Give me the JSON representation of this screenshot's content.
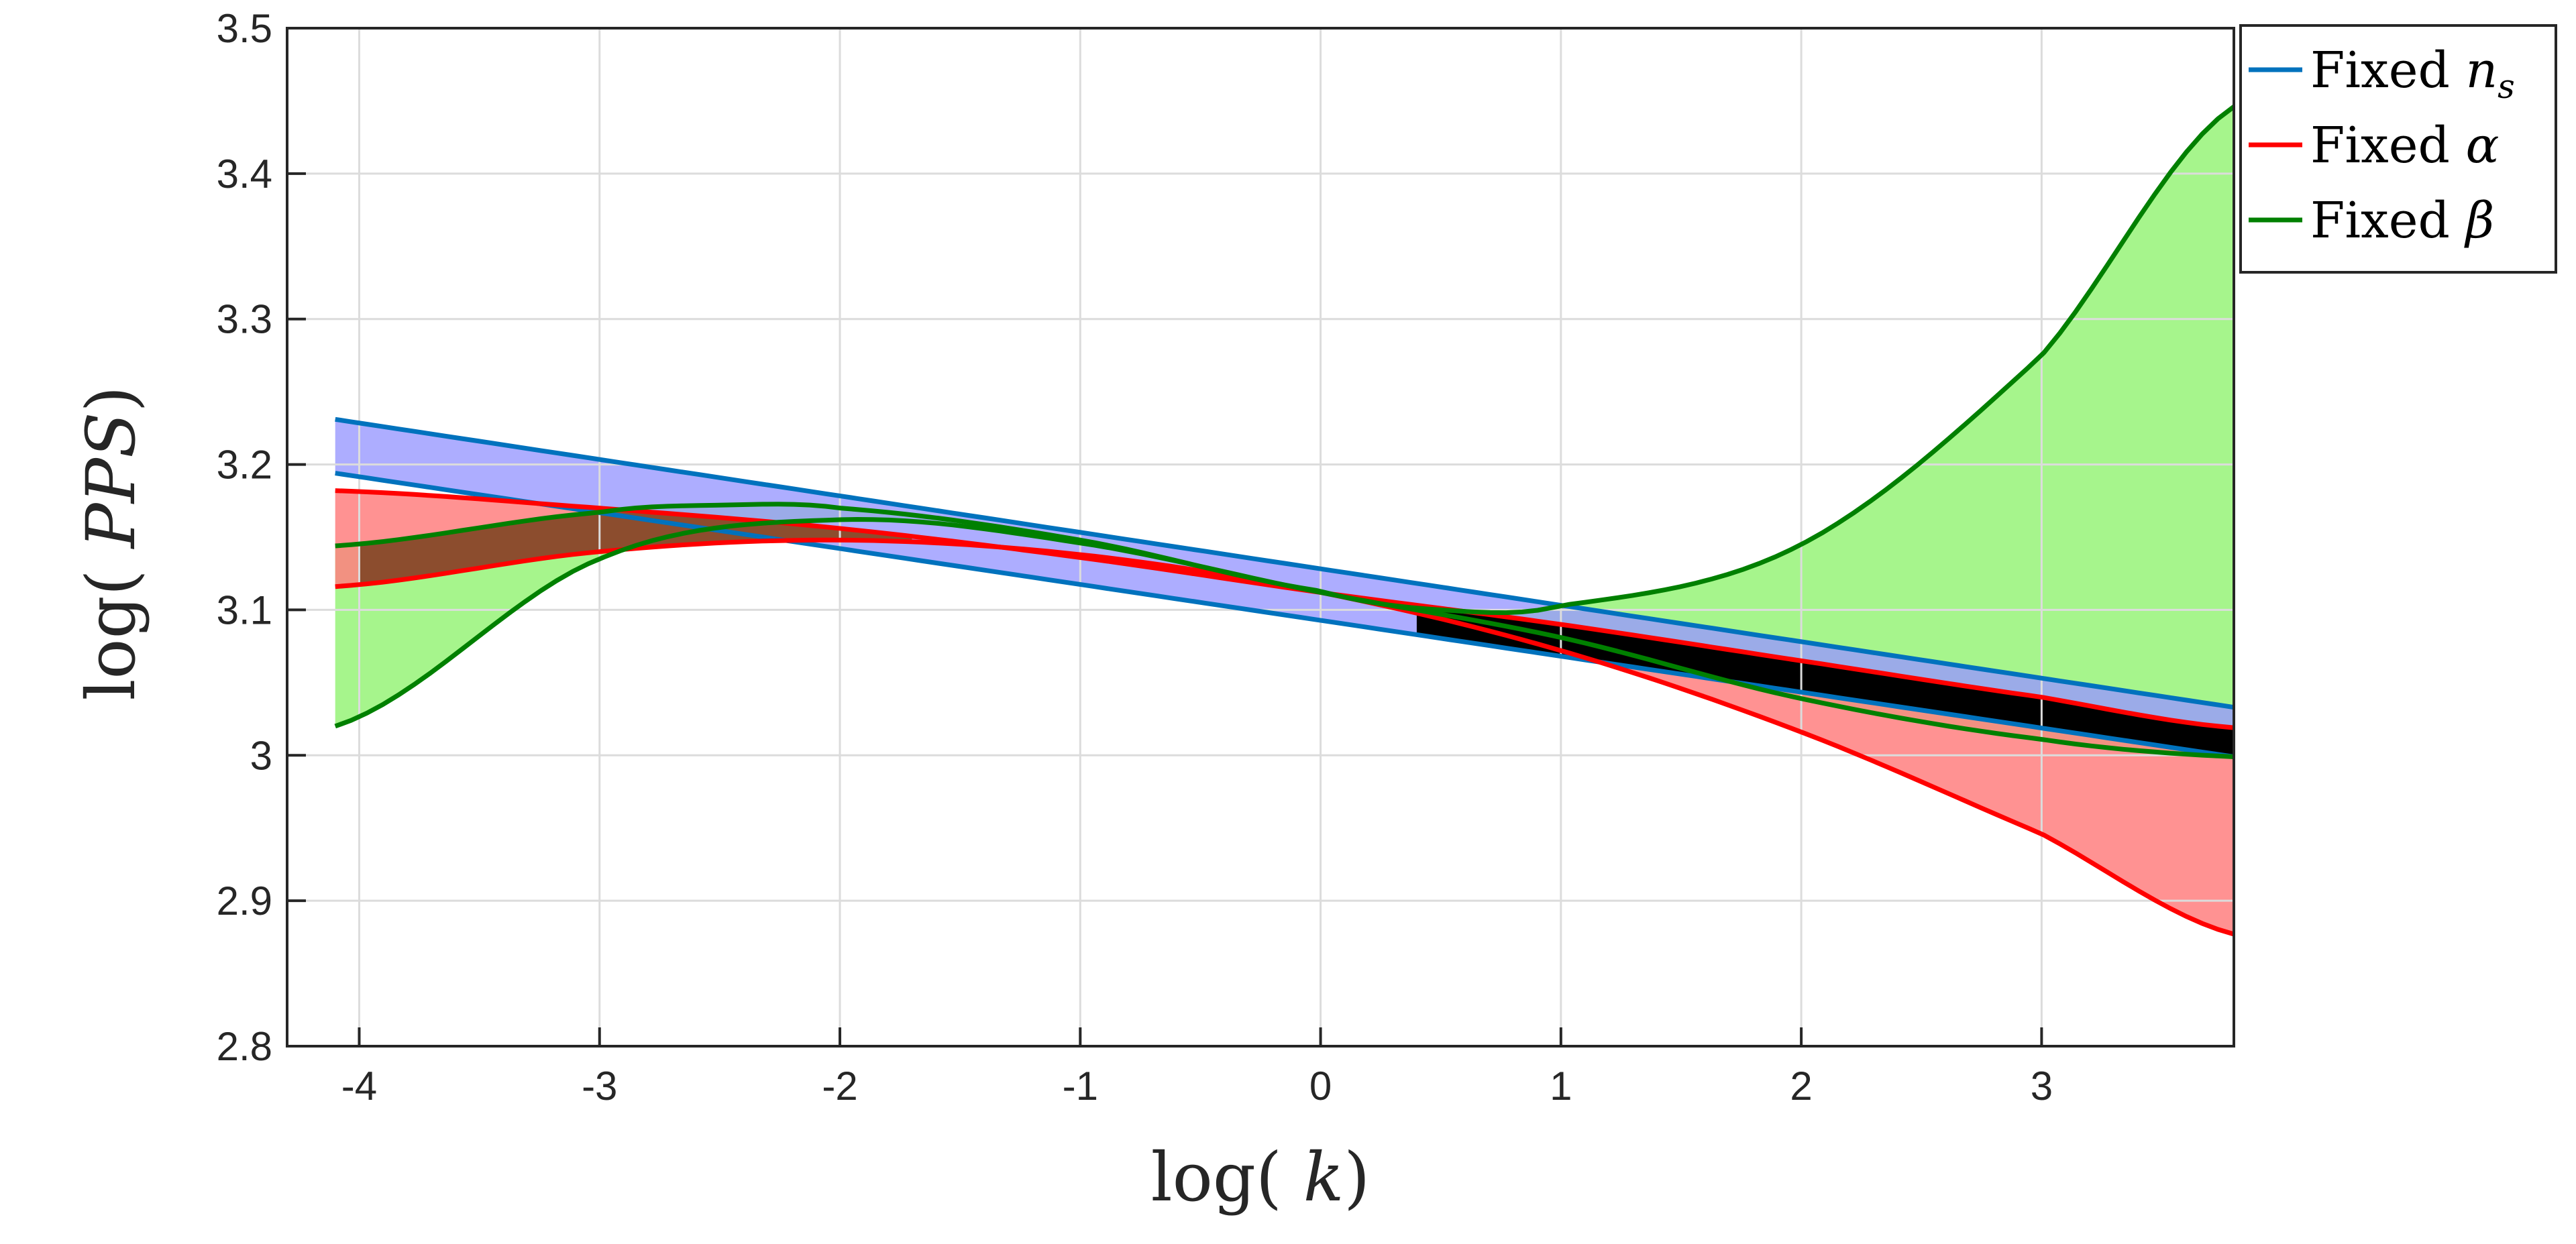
{
  "chart_data": {
    "type": "line",
    "xlabel": "log(k)",
    "ylabel": "log(PPS)",
    "xlim": [
      -4.3,
      3.8
    ],
    "ylim": [
      2.8,
      3.5
    ],
    "xticks": [
      -4,
      -3,
      -2,
      -1,
      0,
      1,
      2,
      3
    ],
    "yticks": [
      2.8,
      2.9,
      3.0,
      3.1,
      3.2,
      3.3,
      3.4,
      3.5
    ],
    "xtick_labels": [
      "-4",
      "-3",
      "-2",
      "-1",
      "0",
      "1",
      "2",
      "3"
    ],
    "ytick_labels": [
      "2.8",
      "2.9",
      "3",
      "3.1",
      "3.2",
      "3.3",
      "3.4",
      "3.5"
    ],
    "grid": true,
    "legend_position": "outside top-right",
    "legend": [
      {
        "label_prefix": "Fixed",
        "label_math": "n",
        "label_sub": "s",
        "color": "#0072BD"
      },
      {
        "label_prefix": "Fixed",
        "label_math": "α",
        "label_sub": "",
        "color": "#FF0000"
      },
      {
        "label_prefix": "Fixed",
        "label_math": "β",
        "label_sub": "",
        "color": "#008000"
      }
    ],
    "series": [
      {
        "group": "ns",
        "color": "#0072BD",
        "upper": {
          "x": [
            -4.1,
            3.8
          ],
          "y": [
            3.231,
            3.033
          ]
        },
        "lower": {
          "x": [
            -4.1,
            3.8
          ],
          "y": [
            3.194,
            2.999
          ]
        }
      },
      {
        "group": "alpha",
        "color": "#FF0000",
        "upper": {
          "x": [
            -4.1,
            -3,
            -2,
            -1,
            0,
            1,
            2,
            3,
            3.8
          ],
          "y": [
            3.182,
            3.17,
            3.156,
            3.136,
            3.112,
            3.09,
            3.065,
            3.04,
            3.019
          ]
        },
        "lower": {
          "x": [
            -4.1,
            -3,
            -2,
            -1,
            0,
            1,
            2,
            3,
            3.8
          ],
          "y": [
            3.116,
            3.14,
            3.148,
            3.138,
            3.112,
            3.072,
            3.016,
            2.946,
            2.877
          ]
        }
      },
      {
        "group": "beta",
        "color": "#008000",
        "upper": {
          "x": [
            -4.1,
            -3,
            -2.5,
            -2,
            -1,
            0,
            0.5,
            1,
            2,
            3,
            3.8
          ],
          "y": [
            3.144,
            3.167,
            3.172,
            3.17,
            3.148,
            3.113,
            3.1,
            3.103,
            3.145,
            3.275,
            3.446
          ]
        },
        "lower": {
          "x": [
            -4.1,
            -3,
            -2,
            -1,
            0,
            1,
            2,
            3,
            3.8
          ],
          "y": [
            3.02,
            3.135,
            3.162,
            3.146,
            3.112,
            3.081,
            3.039,
            3.011,
            2.999
          ]
        }
      }
    ],
    "band_fills": {
      "ns": "#9999ff",
      "alpha": "#ff7f7f",
      "beta": "#a6f58c",
      "overlap_ns_alpha_beta_left": "#8c4d2e",
      "overlap_right": "#000000"
    }
  }
}
